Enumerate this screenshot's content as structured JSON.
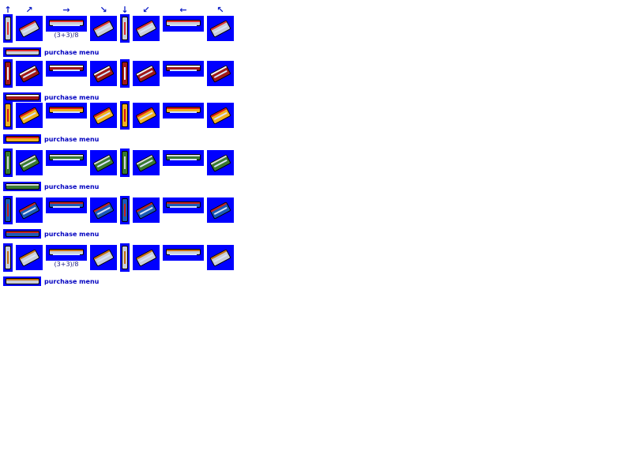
{
  "arrows": [
    "↑",
    "↗",
    "→",
    "↘",
    "↓",
    "↙",
    "←",
    "↖"
  ],
  "rows": [
    {
      "id": "row-1",
      "body": "#c8cdd8",
      "accent": "#e03030",
      "caption": "(3+3)/8",
      "menu_label": "purchase menu"
    },
    {
      "id": "row-2",
      "body": "#a01818",
      "accent": "#f2f2f2",
      "caption": "",
      "menu_label": "purchase menu"
    },
    {
      "id": "row-3",
      "body": "#f0b020",
      "accent": "#d81818",
      "caption": "",
      "menu_label": "purchase menu"
    },
    {
      "id": "row-4",
      "body": "#3a7a30",
      "accent": "#d8d8d8",
      "caption": "",
      "menu_label": "purchase menu"
    },
    {
      "id": "row-5",
      "body": "#1a5ab8",
      "accent": "#c82020",
      "caption": "",
      "menu_label": "purchase menu"
    },
    {
      "id": "row-6",
      "body": "#c8cdd8",
      "accent": "#c87010",
      "caption": "(3+3)/8",
      "menu_label": "purchase menu"
    }
  ],
  "colors": {
    "sprite_bg": "#0000ff",
    "arrow": "#1020c8",
    "label": "#0000c0"
  }
}
